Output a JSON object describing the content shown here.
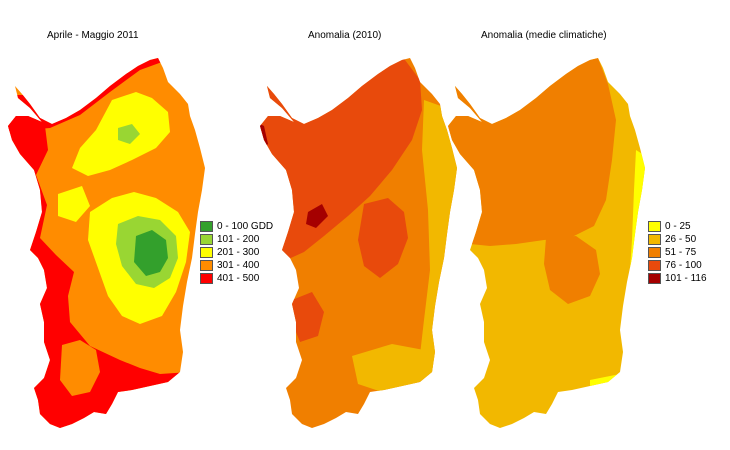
{
  "maps": [
    {
      "title": "Aprile - Maggio 2011",
      "legend": [
        {
          "label": "0 - 100 GDD",
          "color": "#33a02c"
        },
        {
          "label": "101 - 200",
          "color": "#99d633"
        },
        {
          "label": "201 - 300",
          "color": "#ffff00"
        },
        {
          "label": "301 - 400",
          "color": "#ff8c00"
        },
        {
          "label": "401 - 500",
          "color": "#ff0000"
        }
      ]
    },
    {
      "title": "Anomalia (2010)"
    },
    {
      "title": "Anomalia (medie climatiche)",
      "legend": [
        {
          "label": "0 - 25",
          "color": "#ffff00"
        },
        {
          "label": "26 - 50",
          "color": "#f2b800"
        },
        {
          "label": "51 - 75",
          "color": "#f07f00"
        },
        {
          "label": "76 - 100",
          "color": "#e84a0c"
        },
        {
          "label": "101 - 116",
          "color": "#a50000"
        }
      ]
    }
  ]
}
